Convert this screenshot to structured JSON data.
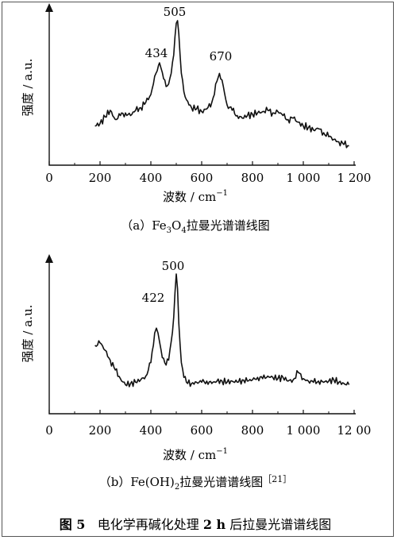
{
  "charts": {
    "a": {
      "ylabel": "强度 / a.u.",
      "xlabel": "波数 / cm",
      "xlabel_sup": "−1",
      "ticks": [
        "0",
        "200",
        "400",
        "600",
        "800",
        "1 000",
        "1 200"
      ],
      "peaks": [
        "434",
        "505",
        "670"
      ],
      "caption_prefix": "（a）Fe",
      "caption_sub1": "3",
      "caption_mid": "O",
      "caption_sub2": "4",
      "caption_suffix": "拉曼光谱谱线图"
    },
    "b": {
      "ylabel": "强度 / a.u.",
      "xlabel": "波数 / cm",
      "xlabel_sup": "−1",
      "ticks": [
        "0",
        "200",
        "400",
        "600",
        "800",
        "1 000",
        "12 00"
      ],
      "peaks": [
        "422",
        "500"
      ],
      "caption_prefix": "（b）Fe(OH)",
      "caption_sub": "2",
      "caption_suffix": "拉曼光谱谱线图",
      "caption_ref": "［21］"
    }
  },
  "figure_caption": {
    "label": "图 5",
    "text": "电化学再碱化处理 ",
    "bold": "2 h",
    "text2": " 后拉曼光谱谱线图"
  },
  "chart_data": [
    {
      "type": "line",
      "xlim": [
        0,
        1200
      ],
      "x_ticks": [
        0,
        200,
        400,
        600,
        800,
        1000,
        1200
      ],
      "series": [
        {
          "x": [
            180,
            200,
            220,
            240,
            260,
            280,
            300,
            320,
            340,
            360,
            380,
            400,
            410,
            420,
            430,
            434,
            440,
            450,
            460,
            470,
            480,
            490,
            495,
            500,
            505,
            510,
            515,
            520,
            530,
            540,
            560,
            580,
            600,
            620,
            640,
            650,
            660,
            670,
            680,
            690,
            700,
            720,
            740,
            760,
            780,
            800,
            820,
            840,
            860,
            880,
            900,
            920,
            940,
            960,
            980,
            1000,
            1020,
            1040,
            1060,
            1080,
            1100,
            1120,
            1140,
            1160,
            1180
          ],
          "y": [
            0.2,
            0.22,
            0.27,
            0.32,
            0.25,
            0.28,
            0.3,
            0.28,
            0.32,
            0.34,
            0.38,
            0.44,
            0.52,
            0.6,
            0.66,
            0.68,
            0.64,
            0.56,
            0.5,
            0.52,
            0.6,
            0.74,
            0.88,
            0.98,
            1.0,
            0.9,
            0.74,
            0.6,
            0.46,
            0.4,
            0.34,
            0.33,
            0.31,
            0.33,
            0.38,
            0.44,
            0.54,
            0.6,
            0.55,
            0.45,
            0.36,
            0.32,
            0.28,
            0.26,
            0.28,
            0.29,
            0.3,
            0.31,
            0.32,
            0.3,
            0.31,
            0.28,
            0.25,
            0.26,
            0.23,
            0.2,
            0.19,
            0.17,
            0.18,
            0.15,
            0.12,
            0.1,
            0.08,
            0.06,
            0.05
          ]
        }
      ]
    },
    {
      "type": "line",
      "xlim": [
        0,
        1200
      ],
      "x_ticks": [
        0,
        200,
        400,
        600,
        800,
        1000,
        1200
      ],
      "series": [
        {
          "x": [
            180,
            200,
            220,
            240,
            260,
            280,
            300,
            320,
            340,
            360,
            380,
            400,
            410,
            415,
            422,
            428,
            435,
            445,
            460,
            470,
            480,
            490,
            495,
            500,
            505,
            510,
            520,
            530,
            540,
            560,
            580,
            600,
            620,
            640,
            660,
            680,
            700,
            720,
            740,
            760,
            780,
            800,
            820,
            840,
            860,
            880,
            900,
            920,
            940,
            960,
            980,
            1000,
            1020,
            1040,
            1060,
            1080,
            1100,
            1120,
            1140,
            1160,
            1180
          ],
          "y": [
            0.42,
            0.44,
            0.38,
            0.3,
            0.22,
            0.15,
            0.1,
            0.11,
            0.12,
            0.14,
            0.17,
            0.28,
            0.42,
            0.52,
            0.56,
            0.52,
            0.44,
            0.32,
            0.26,
            0.3,
            0.45,
            0.65,
            0.85,
            1.0,
            0.88,
            0.6,
            0.28,
            0.16,
            0.12,
            0.11,
            0.12,
            0.12,
            0.13,
            0.11,
            0.13,
            0.13,
            0.12,
            0.13,
            0.12,
            0.14,
            0.13,
            0.14,
            0.16,
            0.15,
            0.17,
            0.16,
            0.15,
            0.16,
            0.13,
            0.14,
            0.2,
            0.15,
            0.13,
            0.12,
            0.13,
            0.12,
            0.13,
            0.14,
            0.12,
            0.11,
            0.1
          ]
        }
      ]
    }
  ]
}
